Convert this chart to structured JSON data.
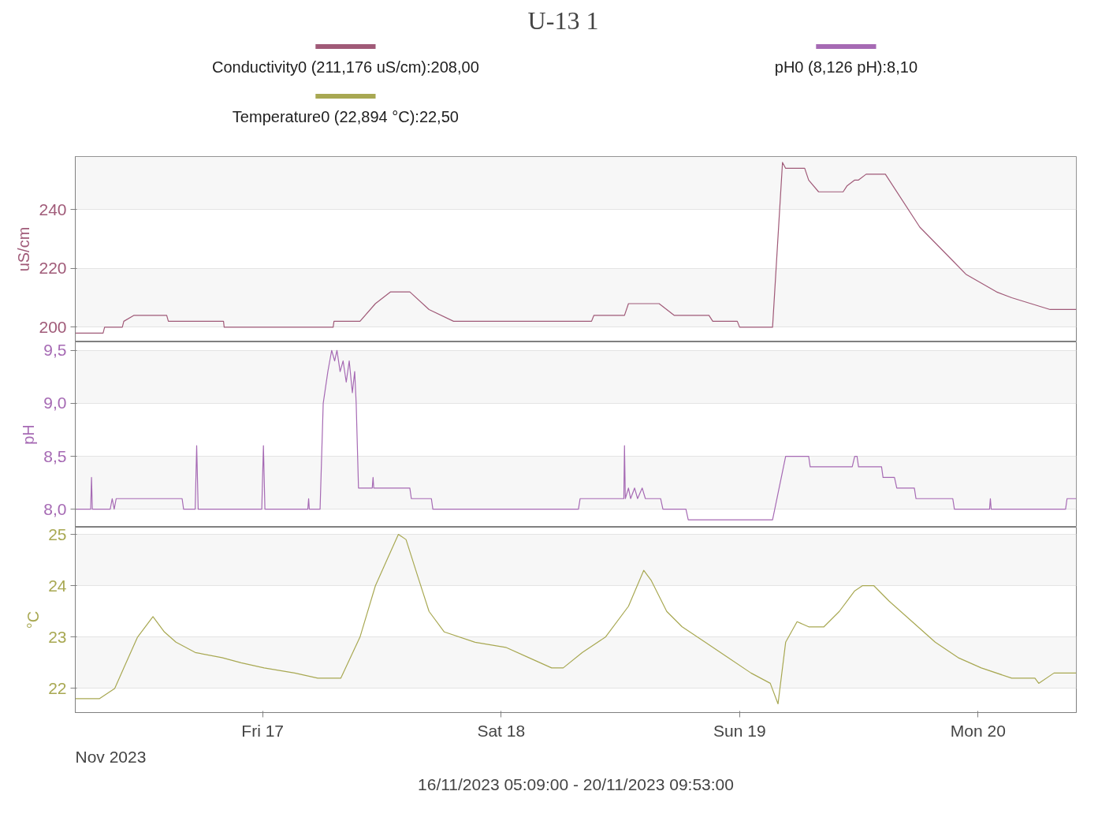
{
  "chart_data": [
    {
      "type": "line",
      "title": "U-13     1",
      "legend": "top",
      "grid": "y",
      "tick_labels": "y",
      "ylabel": "uS/cm",
      "xlim": [
        "2023-11-16T05:09",
        "2023-11-20T09:53"
      ],
      "ylim": [
        195,
        258
      ],
      "yticks": [
        200,
        220,
        240
      ],
      "series": [
        {
          "name": "Conductivity0 (211,176 uS/cm):208,00",
          "color": "#a05a78",
          "x": [
            "2023-11-16T05:09",
            "2023-11-16T07:57",
            "2023-11-16T08:06",
            "2023-11-16T09:53",
            "2023-11-16T10:02",
            "2023-11-16T11:02",
            "2023-11-16T14:21",
            "2023-11-16T14:31",
            "2023-11-16T20:04",
            "2023-11-16T20:08",
            "2023-11-17T07:06",
            "2023-11-17T07:11",
            "2023-11-17T09:48",
            "2023-11-17T11:21",
            "2023-11-17T12:53",
            "2023-11-17T14:49",
            "2023-11-17T16:45",
            "2023-11-17T19:13",
            "2023-11-18T09:06",
            "2023-11-18T09:20",
            "2023-11-18T12:25",
            "2023-11-18T12:49",
            "2023-11-18T15:54",
            "2023-11-18T16:40",
            "2023-11-18T17:26",
            "2023-11-18T20:55",
            "2023-11-18T21:18",
            "2023-11-18T23:46",
            "2023-11-19T00:00",
            "2023-11-19T03:19",
            "2023-11-19T04:19",
            "2023-11-19T04:38",
            "2023-11-19T06:33",
            "2023-11-19T06:57",
            "2023-11-19T07:57",
            "2023-11-19T10:25",
            "2023-11-19T10:48",
            "2023-11-19T11:35",
            "2023-11-19T11:58",
            "2023-11-19T12:44",
            "2023-11-19T14:40",
            "2023-11-19T18:08",
            "2023-11-19T21:37",
            "2023-11-19T22:46",
            "2023-11-20T01:51",
            "2023-11-20T03:23",
            "2023-11-20T05:19",
            "2023-11-20T07:15",
            "2023-11-20T09:53"
          ],
          "values": [
            198,
            198,
            200,
            200,
            202,
            204,
            204,
            202,
            202,
            200,
            200,
            202,
            202,
            208,
            212,
            212,
            206,
            202,
            202,
            204,
            204,
            208,
            208,
            206,
            204,
            204,
            202,
            202,
            200,
            200,
            256,
            254,
            254,
            250,
            246,
            246,
            248,
            250,
            250,
            252,
            252,
            234,
            222,
            218,
            212,
            210,
            208,
            206,
            206
          ]
        }
      ]
    },
    {
      "type": "line",
      "grid": "y",
      "tick_labels": "y",
      "ylabel": "pH",
      "xlim": [
        "2023-11-16T05:09",
        "2023-11-20T09:53"
      ],
      "ylim": [
        7.83,
        9.58
      ],
      "yticks": [
        {
          "value": 8.0,
          "label": "8,0"
        },
        {
          "value": 8.5,
          "label": "8,5"
        },
        {
          "value": 9.0,
          "label": "9,0"
        },
        {
          "value": 9.5,
          "label": "9,5"
        }
      ],
      "series": [
        {
          "name": "pH0 (8,126 pH):8,10",
          "color": "#a66ab4",
          "x": [
            "2023-11-16T05:09",
            "2023-11-16T06:42",
            "2023-11-16T06:47",
            "2023-11-16T06:52",
            "2023-11-16T08:40",
            "2023-11-16T08:52",
            "2023-11-16T09:04",
            "2023-11-16T09:16",
            "2023-11-16T15:54",
            "2023-11-16T16:03",
            "2023-11-16T17:13",
            "2023-11-16T17:22",
            "2023-11-16T17:31",
            "2023-11-16T23:55",
            "2023-11-17T00:05",
            "2023-11-17T00:14",
            "2023-11-17T04:33",
            "2023-11-17T04:38",
            "2023-11-17T04:42",
            "2023-11-17T05:47",
            "2023-11-17T06:06",
            "2023-11-17T06:34",
            "2023-11-17T06:57",
            "2023-11-17T07:15",
            "2023-11-17T07:29",
            "2023-11-17T07:48",
            "2023-11-17T08:06",
            "2023-11-17T08:25",
            "2023-11-17T08:43",
            "2023-11-17T09:02",
            "2023-11-17T09:16",
            "2023-11-17T09:25",
            "2023-11-17T09:39",
            "2023-11-17T11:02",
            "2023-11-17T11:07",
            "2023-11-17T11:11",
            "2023-11-17T14:49",
            "2023-11-17T14:58",
            "2023-11-17T16:59",
            "2023-11-17T17:08",
            "2023-11-18T07:47",
            "2023-11-18T07:57",
            "2023-11-18T12:21",
            "2023-11-18T12:25",
            "2023-11-18T12:30",
            "2023-11-18T12:49",
            "2023-11-18T13:02",
            "2023-11-18T13:26",
            "2023-11-18T13:44",
            "2023-11-18T14:12",
            "2023-11-18T14:31",
            "2023-11-18T16:03",
            "2023-11-18T16:17",
            "2023-11-18T18:36",
            "2023-11-18T18:50",
            "2023-11-19T03:19",
            "2023-11-19T04:38",
            "2023-11-19T06:57",
            "2023-11-19T07:06",
            "2023-11-19T11:20",
            "2023-11-19T11:35",
            "2023-11-19T11:49",
            "2023-11-19T11:58",
            "2023-11-19T14:17",
            "2023-11-19T14:26",
            "2023-11-19T15:35",
            "2023-11-19T15:49",
            "2023-11-19T17:35",
            "2023-11-19T17:45",
            "2023-11-19T21:27",
            "2023-11-19T21:37",
            "2023-11-20T01:09",
            "2023-11-20T01:14",
            "2023-11-20T01:19",
            "2023-11-20T08:48",
            "2023-11-20T08:57",
            "2023-11-20T09:53"
          ],
          "values": [
            8.0,
            8.0,
            8.3,
            8.0,
            8.0,
            8.1,
            8.0,
            8.1,
            8.1,
            8.0,
            8.0,
            8.6,
            8.0,
            8.0,
            8.6,
            8.0,
            8.0,
            8.1,
            8.0,
            8.0,
            9.0,
            9.3,
            9.5,
            9.4,
            9.5,
            9.3,
            9.4,
            9.2,
            9.4,
            9.1,
            9.3,
            9.0,
            8.2,
            8.2,
            8.3,
            8.2,
            8.2,
            8.1,
            8.1,
            8.0,
            8.0,
            8.1,
            8.1,
            8.6,
            8.1,
            8.2,
            8.1,
            8.2,
            8.1,
            8.2,
            8.1,
            8.1,
            8.0,
            8.0,
            7.9,
            7.9,
            8.5,
            8.5,
            8.4,
            8.4,
            8.5,
            8.5,
            8.4,
            8.4,
            8.3,
            8.3,
            8.2,
            8.2,
            8.1,
            8.1,
            8.0,
            8.0,
            8.1,
            8.0,
            8.0,
            8.1,
            8.1
          ]
        }
      ]
    },
    {
      "type": "line",
      "grid": "y",
      "ylabel": "°C",
      "xlim": [
        "2023-11-16T05:09",
        "2023-11-20T09:53"
      ],
      "ylim": [
        21.53,
        25.14
      ],
      "yticks": [
        22,
        23,
        24,
        25
      ],
      "xticks": [
        {
          "value": "2023-11-17",
          "label": "Fri 17"
        },
        {
          "value": "2023-11-18",
          "label": "Sat 18"
        },
        {
          "value": "2023-11-19",
          "label": "Sun 19"
        },
        {
          "value": "2023-11-20",
          "label": "Mon 20"
        }
      ],
      "annotations": [
        "Nov 2023",
        "16/11/2023 05:09:00 - 20/11/2023 09:53:00"
      ],
      "series": [
        {
          "name": "Temperature0 (22,894 °C):22,50",
          "color": "#a8a852",
          "x": [
            "2023-11-16T05:09",
            "2023-11-16T07:34",
            "2023-11-16T09:07",
            "2023-11-16T10:16",
            "2023-11-16T11:25",
            "2023-11-16T12:58",
            "2023-11-16T14:07",
            "2023-11-16T15:17",
            "2023-11-16T17:13",
            "2023-11-16T19:55",
            "2023-11-16T21:50",
            "2023-11-17T00:09",
            "2023-11-17T03:14",
            "2023-11-17T05:33",
            "2023-11-17T07:52",
            "2023-11-17T09:48",
            "2023-11-17T11:21",
            "2023-11-17T12:30",
            "2023-11-17T13:40",
            "2023-11-17T14:26",
            "2023-11-17T15:35",
            "2023-11-17T16:45",
            "2023-11-17T18:17",
            "2023-11-17T21:23",
            "2023-11-18T00:28",
            "2023-11-18T02:47",
            "2023-11-18T05:05",
            "2023-11-18T06:15",
            "2023-11-18T08:11",
            "2023-11-18T10:30",
            "2023-11-18T12:49",
            "2023-11-18T14:21",
            "2023-11-18T15:07",
            "2023-11-18T16:40",
            "2023-11-18T18:13",
            "2023-11-18T20:32",
            "2023-11-18T22:50",
            "2023-11-19T01:09",
            "2023-11-19T03:05",
            "2023-11-19T03:52",
            "2023-11-19T04:38",
            "2023-11-19T05:47",
            "2023-11-19T06:57",
            "2023-11-19T08:29",
            "2023-11-19T10:02",
            "2023-11-19T11:35",
            "2023-11-19T12:21",
            "2023-11-19T13:31",
            "2023-11-19T15:03",
            "2023-11-19T17:22",
            "2023-11-19T19:41",
            "2023-11-19T21:59",
            "2023-11-20T00:19",
            "2023-11-20T03:23",
            "2023-11-20T05:43",
            "2023-11-20T06:06",
            "2023-11-20T07:38",
            "2023-11-20T09:53"
          ],
          "values": [
            21.8,
            21.8,
            22.0,
            22.5,
            23.0,
            23.4,
            23.1,
            22.9,
            22.7,
            22.6,
            22.5,
            22.4,
            22.3,
            22.2,
            22.2,
            23.0,
            24.0,
            24.5,
            25.0,
            24.9,
            24.2,
            23.5,
            23.1,
            22.9,
            22.8,
            22.6,
            22.4,
            22.4,
            22.7,
            23.0,
            23.6,
            24.3,
            24.1,
            23.5,
            23.2,
            22.9,
            22.6,
            22.3,
            22.1,
            21.7,
            22.9,
            23.3,
            23.2,
            23.2,
            23.5,
            23.9,
            24.0,
            24.0,
            23.7,
            23.3,
            22.9,
            22.6,
            22.4,
            22.2,
            22.2,
            22.1,
            22.3,
            22.3
          ]
        }
      ]
    }
  ]
}
